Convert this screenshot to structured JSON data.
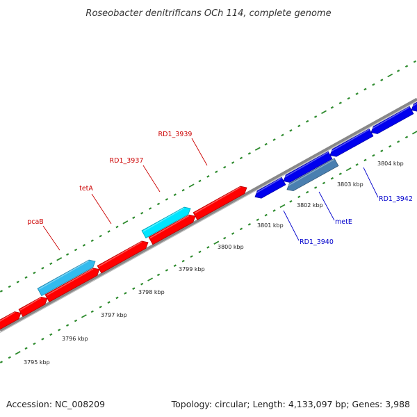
{
  "title": "Roseobacter denitrificans OCh 114, complete genome",
  "footer": {
    "accession": "Accession: NC_008209",
    "summary": "Topology: circular; Length: 4,133,097 bp; Genes: 3,988"
  },
  "colors": {
    "forward_gene": "#ff0000",
    "forward_other": "#00e5ff",
    "forward_other_dark": "#33bbee",
    "reverse_gene": "#0000ee",
    "reverse_other": "#4a7fb0",
    "backbone": "#888888",
    "tick": "#2e8b2e",
    "forward_label": "#cc0000",
    "reverse_label": "#0000cc"
  },
  "ticks": [
    {
      "label": "3795 kbp"
    },
    {
      "label": "3796 kbp"
    },
    {
      "label": "3797 kbp"
    },
    {
      "label": "3798 kbp"
    },
    {
      "label": "3799 kbp"
    },
    {
      "label": "3800 kbp"
    },
    {
      "label": "3801 kbp"
    },
    {
      "label": "3802 kbp"
    },
    {
      "label": "3803 kbp"
    },
    {
      "label": "3804 kbp"
    }
  ],
  "gene_labels": [
    {
      "text": "pcaB",
      "strand": "forward"
    },
    {
      "text": "tetA",
      "strand": "forward"
    },
    {
      "text": "RD1_3937",
      "strand": "forward"
    },
    {
      "text": "RD1_3939",
      "strand": "forward"
    },
    {
      "text": "RD1_3940",
      "strand": "reverse"
    },
    {
      "text": "metE",
      "strand": "reverse"
    },
    {
      "text": "RD1_3942",
      "strand": "reverse"
    }
  ]
}
